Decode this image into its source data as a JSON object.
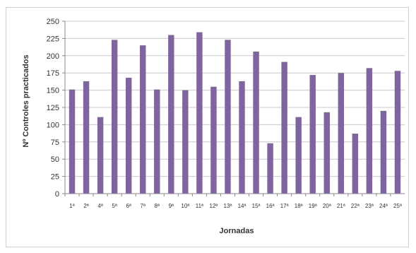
{
  "chart_data": {
    "type": "bar",
    "title": "",
    "xlabel": "Jornadas",
    "ylabel": "Nº Controles practicados",
    "ylim": [
      0,
      250
    ],
    "y_ticks": [
      0,
      25,
      50,
      75,
      100,
      125,
      150,
      175,
      200,
      225,
      250
    ],
    "grid": true,
    "legend": "none",
    "bar_color": "#8064a2",
    "categories": [
      "1ª",
      "2ª",
      "4ª",
      "5ª",
      "6ª",
      "7ª",
      "8ª",
      "9ª",
      "10ª",
      "11ª",
      "12ª",
      "13ª",
      "14ª",
      "15ª",
      "16ª",
      "17ª",
      "18ª",
      "19ª",
      "20ª",
      "21ª",
      "22ª",
      "23ª",
      "24ª",
      "25ª"
    ],
    "category_labels": [
      "1ª",
      "2ª",
      "4ª",
      "5ª",
      "6ª",
      "7ª",
      "8ª",
      "9ª",
      "10ª",
      "11ª",
      "12ª",
      "13ª",
      "14ª",
      "15ª",
      "16ª",
      "17ª",
      "18ª",
      "19ª",
      "20ª",
      "21ª",
      "22ª",
      "23ª",
      "24ª",
      "25ª"
    ],
    "values": [
      151,
      163,
      111,
      223,
      168,
      215,
      151,
      230,
      150,
      234,
      155,
      223,
      163,
      206,
      73,
      191,
      111,
      172,
      118,
      175,
      87,
      182,
      120,
      178
    ]
  }
}
